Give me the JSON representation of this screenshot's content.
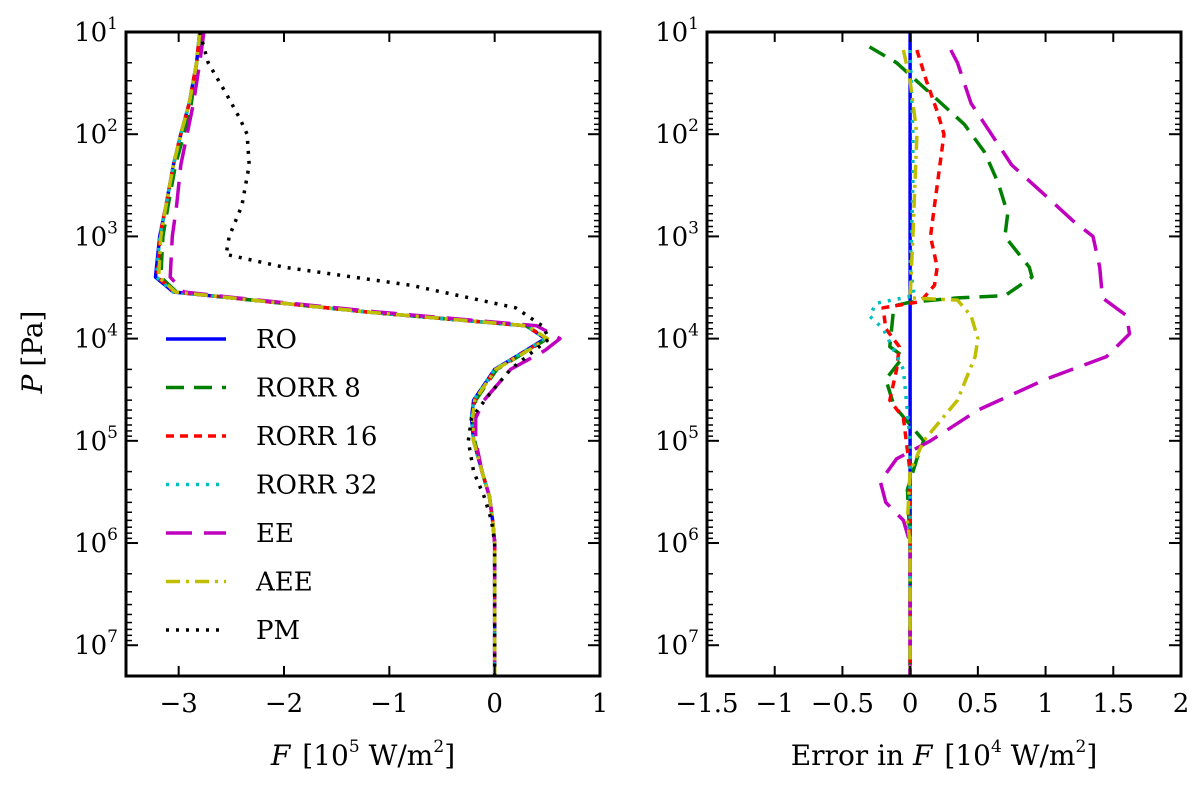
{
  "chart_data": [
    {
      "type": "line",
      "panel": "left",
      "ylabel": "P [Pa]",
      "ylabel_var": "P",
      "ylabel_unit": "[Pa]",
      "xlabel": "F [10^5 W/m^2]",
      "xlabel_var": "F",
      "xlabel_unit": "[10",
      "xlabel_unit_exp": "5",
      "xlabel_unit_mid": " W/m",
      "xlabel_unit_exp2": "2",
      "xlabel_unit_end": "]",
      "xlim": [
        -3.5,
        1.0
      ],
      "ylim": [
        10,
        20000000
      ],
      "yscale": "log",
      "y_inverted": true,
      "xticks": [
        -3,
        -2,
        -1,
        0,
        1
      ],
      "xtick_labels": [
        "−3",
        "−2",
        "−1",
        "0",
        "1"
      ],
      "ytick_exponents": [
        "1",
        "2",
        "3",
        "4",
        "5",
        "6",
        "7"
      ],
      "ytick_base": "10",
      "legend_position": "lower-left",
      "series": [
        {
          "name": "RO",
          "color": "#0000ff",
          "style": "solid",
          "x": [
            -2.8,
            -2.83,
            -2.9,
            -2.98,
            -3.05,
            -3.12,
            -3.18,
            -3.22,
            -3.05,
            -2.5,
            -1.2,
            0.3,
            0.48,
            0.3,
            0.0,
            -0.2,
            -0.22,
            -0.2,
            -0.12,
            -0.05,
            -0.02,
            0,
            0,
            0,
            0
          ],
          "p": [
            10,
            20,
            50,
            100,
            200,
            500,
            1000,
            2500,
            3500,
            4000,
            5500,
            7500,
            10000,
            13000,
            20000,
            40000,
            60000,
            100000,
            200000,
            350000,
            600000,
            1000000,
            3000000,
            10000000,
            20000000
          ]
        },
        {
          "name": "RORR 8",
          "color": "#008000",
          "style": "dashed",
          "x": [
            -2.78,
            -2.83,
            -2.88,
            -2.95,
            -3.03,
            -3.1,
            -3.15,
            -3.17,
            -3.02,
            -2.5,
            -1.2,
            0.3,
            0.5,
            0.32,
            0.02,
            -0.18,
            -0.2,
            -0.19,
            -0.12,
            -0.05,
            -0.02,
            0,
            0,
            0,
            0
          ],
          "p": [
            10,
            20,
            50,
            100,
            200,
            500,
            1000,
            2500,
            3500,
            4000,
            5500,
            7500,
            10000,
            13000,
            20000,
            40000,
            60000,
            100000,
            200000,
            350000,
            600000,
            1000000,
            3000000,
            10000000,
            20000000
          ]
        },
        {
          "name": "RORR 16",
          "color": "#ff0000",
          "style": "densely-dashed",
          "x": [
            -2.8,
            -2.83,
            -2.9,
            -2.98,
            -3.05,
            -3.12,
            -3.18,
            -3.2,
            -3.04,
            -2.5,
            -1.2,
            0.3,
            0.49,
            0.31,
            0.01,
            -0.19,
            -0.21,
            -0.2,
            -0.12,
            -0.05,
            -0.02,
            0,
            0,
            0,
            0
          ],
          "p": [
            10,
            20,
            50,
            100,
            200,
            500,
            1000,
            2500,
            3500,
            4000,
            5500,
            7500,
            10000,
            13000,
            20000,
            40000,
            60000,
            100000,
            200000,
            350000,
            600000,
            1000000,
            3000000,
            10000000,
            20000000
          ]
        },
        {
          "name": "RORR 32",
          "color": "#00bfbf",
          "style": "dotted",
          "x": [
            -2.8,
            -2.83,
            -2.9,
            -2.98,
            -3.05,
            -3.12,
            -3.18,
            -3.21,
            -3.05,
            -2.5,
            -1.2,
            0.3,
            0.48,
            0.3,
            0.0,
            -0.2,
            -0.22,
            -0.2,
            -0.12,
            -0.05,
            -0.02,
            0,
            0,
            0,
            0
          ],
          "p": [
            10,
            20,
            50,
            100,
            200,
            500,
            1000,
            2500,
            3500,
            4000,
            5500,
            7500,
            10000,
            13000,
            20000,
            40000,
            60000,
            100000,
            200000,
            350000,
            600000,
            1000000,
            3000000,
            10000000,
            20000000
          ]
        },
        {
          "name": "EE",
          "color": "#bf00bf",
          "style": "long-dashed",
          "x": [
            -2.76,
            -2.8,
            -2.86,
            -2.92,
            -2.98,
            -3.02,
            -3.06,
            -3.08,
            -2.95,
            -2.45,
            -1.1,
            0.4,
            0.62,
            0.48,
            0.15,
            -0.1,
            -0.18,
            -0.18,
            -0.12,
            -0.05,
            -0.02,
            0,
            0,
            0,
            0
          ],
          "p": [
            10,
            20,
            50,
            100,
            200,
            500,
            1000,
            2500,
            3500,
            4000,
            5500,
            7500,
            10000,
            13000,
            20000,
            40000,
            60000,
            100000,
            200000,
            350000,
            600000,
            1000000,
            3000000,
            10000000,
            20000000
          ]
        },
        {
          "name": "AEE",
          "color": "#bfbf00",
          "style": "dash-dot",
          "x": [
            -2.8,
            -2.83,
            -2.9,
            -2.98,
            -3.05,
            -3.12,
            -3.17,
            -3.19,
            -3.03,
            -2.5,
            -1.2,
            0.31,
            0.5,
            0.32,
            0.01,
            -0.19,
            -0.21,
            -0.2,
            -0.12,
            -0.05,
            -0.02,
            0,
            0,
            0,
            0
          ],
          "p": [
            10,
            20,
            50,
            100,
            200,
            500,
            1000,
            2500,
            3500,
            4000,
            5500,
            7500,
            10000,
            13000,
            20000,
            40000,
            60000,
            100000,
            200000,
            350000,
            600000,
            1000000,
            3000000,
            10000000,
            20000000
          ]
        },
        {
          "name": "PM",
          "color": "#000000",
          "style": "dotted",
          "x": [
            -2.8,
            -2.72,
            -2.55,
            -2.42,
            -2.35,
            -2.33,
            -2.4,
            -2.52,
            -2.55,
            -2.0,
            -0.8,
            0.2,
            0.45,
            0.52,
            0.15,
            -0.05,
            -0.22,
            -0.25,
            -0.2,
            -0.1,
            -0.03,
            0,
            0,
            0,
            0
          ],
          "p": [
            10,
            20,
            40,
            70,
            100,
            200,
            500,
            1000,
            1500,
            2000,
            3000,
            5000,
            7500,
            10000,
            20000,
            35000,
            60000,
            100000,
            200000,
            350000,
            600000,
            1000000,
            3000000,
            10000000,
            20000000
          ]
        }
      ]
    },
    {
      "type": "line",
      "panel": "right",
      "xlabel": "Error in F [10^4 W/m^2]",
      "xlabel_prefix": "Error in ",
      "xlabel_var": "F",
      "xlabel_unit": "[10",
      "xlabel_unit_exp": "4",
      "xlabel_unit_mid": " W/m",
      "xlabel_unit_exp2": "2",
      "xlabel_unit_end": "]",
      "xlim": [
        -1.5,
        2.0
      ],
      "ylim": [
        10,
        20000000
      ],
      "yscale": "log",
      "y_inverted": true,
      "xticks": [
        -1.5,
        -1,
        -0.5,
        0,
        0.5,
        1,
        1.5,
        2
      ],
      "xtick_labels": [
        "−1.5",
        "−1",
        "−0.5",
        "0",
        "0.5",
        "1",
        "1.5",
        "2"
      ],
      "ytick_exponents": [
        "1",
        "2",
        "3",
        "4",
        "5",
        "6",
        "7"
      ],
      "ytick_base": "10",
      "series": [
        {
          "name": "RO",
          "color": "#0000ff",
          "style": "solid",
          "x": [
            0,
            0
          ],
          "p": [
            10,
            20000000
          ]
        },
        {
          "name": "RORR 8",
          "color": "#008000",
          "style": "dashed",
          "x": [
            -0.3,
            -0.1,
            0.15,
            0.4,
            0.55,
            0.65,
            0.72,
            0.7,
            0.88,
            0.9,
            0.7,
            0.35,
            0.0,
            -0.12,
            -0.15,
            -0.05,
            -0.18,
            -0.12,
            0.0,
            0.1,
            0.05,
            -0.02,
            0.0,
            0.0,
            0.0
          ],
          "p": [
            14,
            20,
            40,
            80,
            150,
            300,
            600,
            1000,
            2000,
            2500,
            3800,
            4000,
            4400,
            4800,
            12000,
            15000,
            25000,
            45000,
            70000,
            100000,
            150000,
            300000,
            1000000,
            5000000,
            20000000
          ]
        },
        {
          "name": "RORR 16",
          "color": "#ff0000",
          "style": "densely-dashed",
          "x": [
            0.05,
            0.12,
            0.2,
            0.25,
            0.22,
            0.18,
            0.15,
            0.2,
            0.18,
            0.1,
            0.05,
            -0.2,
            -0.18,
            -0.08,
            -0.1,
            -0.15,
            -0.05,
            0.0,
            0.0,
            0.0
          ],
          "p": [
            15,
            30,
            60,
            100,
            200,
            500,
            1000,
            2000,
            3000,
            4000,
            4400,
            5000,
            8000,
            12000,
            20000,
            40000,
            60000,
            200000,
            1000000,
            20000000
          ]
        },
        {
          "name": "RORR 32",
          "color": "#00bfbf",
          "style": "dotted",
          "x": [
            0.0,
            0.02,
            0.02,
            0.01,
            0.0,
            0.02,
            0.03,
            -0.25,
            -0.3,
            -0.2,
            -0.05,
            0.0,
            0.0
          ],
          "p": [
            15,
            100,
            300,
            1000,
            2000,
            3000,
            3800,
            4500,
            6000,
            8000,
            20000,
            100000,
            20000000
          ]
        },
        {
          "name": "EE",
          "color": "#bf00bf",
          "style": "long-dashed",
          "x": [
            0.3,
            0.35,
            0.45,
            0.6,
            0.75,
            1.0,
            1.2,
            1.35,
            1.4,
            1.42,
            1.6,
            1.62,
            1.45,
            1.0,
            0.5,
            0.15,
            -0.1,
            -0.22,
            -0.18,
            -0.05,
            0.0,
            0.0,
            0.0
          ],
          "p": [
            15,
            20,
            50,
            100,
            200,
            400,
            700,
            1000,
            2000,
            4000,
            6000,
            9000,
            15000,
            25000,
            50000,
            100000,
            150000,
            250000,
            400000,
            600000,
            1000000,
            5000000,
            20000000
          ]
        },
        {
          "name": "AEE",
          "color": "#bfbf00",
          "style": "dash-dot",
          "x": [
            -0.05,
            0.0,
            0.05,
            0.02,
            0.0,
            0.35,
            0.45,
            0.5,
            0.48,
            0.35,
            0.1,
            0.0,
            -0.02,
            0.0,
            0.0,
            0.0
          ],
          "p": [
            15,
            30,
            100,
            1000,
            4000,
            4200,
            6000,
            10000,
            15000,
            40000,
            100000,
            200000,
            600000,
            1000000,
            5000000,
            20000000
          ]
        },
        {
          "name": "PM",
          "color": "#000000",
          "style": "dotted",
          "x": [],
          "p": []
        }
      ]
    }
  ]
}
